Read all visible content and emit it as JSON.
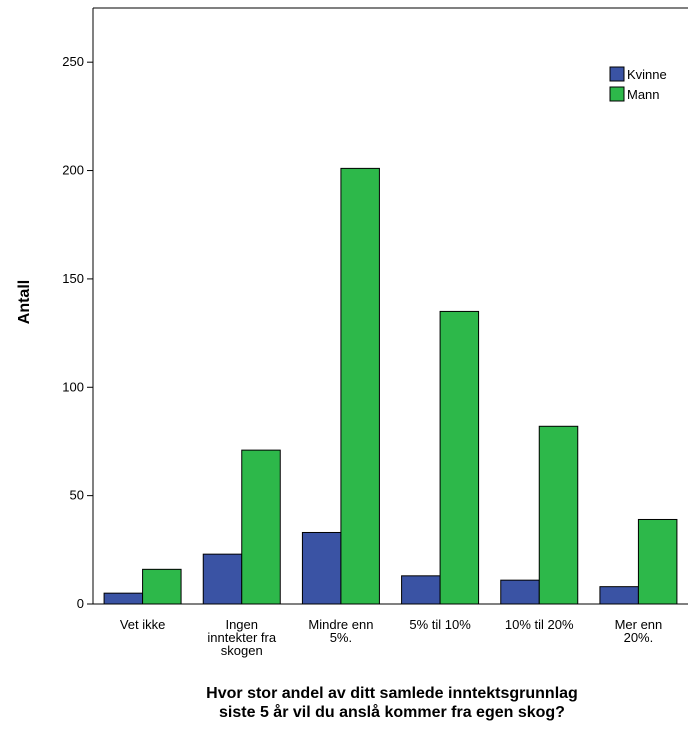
{
  "chart_data": {
    "type": "bar",
    "title": "",
    "xlabel_lines": [
      "Hvor stor andel av ditt samlede inntektsgrunnlag",
      "siste 5 år vil du anslå kommer fra egen skog?"
    ],
    "ylabel": "Antall",
    "ylim": [
      0,
      275
    ],
    "yticks": [
      0,
      50,
      100,
      150,
      200,
      250
    ],
    "grid": false,
    "legend_position": "top-right",
    "categories": [
      [
        "Vet ikke"
      ],
      [
        "Ingen",
        "inntekter fra",
        "skogen"
      ],
      [
        "Mindre enn",
        "5%."
      ],
      [
        "5% til 10%"
      ],
      [
        "10% til 20%"
      ],
      [
        "Mer enn",
        "20%."
      ]
    ],
    "series": [
      {
        "name": "Kvinne",
        "color": "#3a53a4",
        "values": [
          5,
          23,
          33,
          13,
          11,
          8
        ]
      },
      {
        "name": "Mann",
        "color": "#2db84a",
        "values": [
          16,
          71,
          201,
          135,
          82,
          39
        ]
      }
    ]
  }
}
